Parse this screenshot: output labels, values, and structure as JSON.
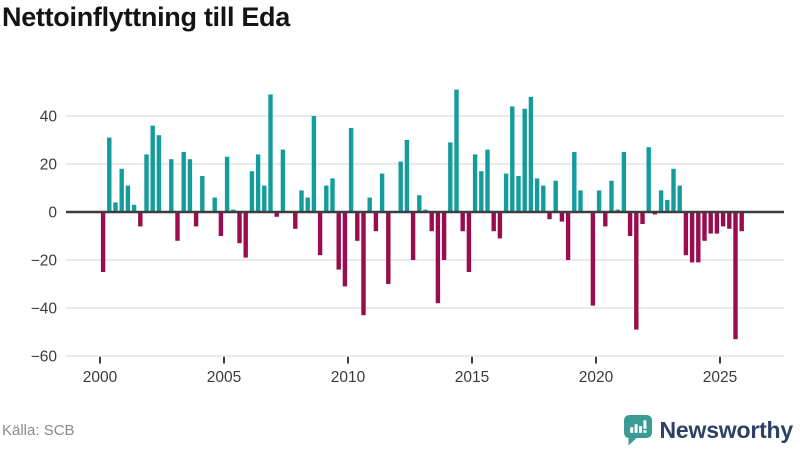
{
  "title": "Nettoinflyttning till Eda",
  "source": "Källa: SCB",
  "branding": {
    "name": "Newsworthy",
    "logo_icon": "bar-chart-speech-bubble",
    "logo_color": "#3c9b94",
    "text_color": "#2c4164"
  },
  "colors": {
    "positive": "#149c9c",
    "negative": "#9a0c4e",
    "grid": "#e4e4e4",
    "zero_line": "#3d3d3d",
    "axis_text": "#3b3b3b",
    "tick_mark": "#3d3d3d",
    "source_text": "#8a8a8a",
    "background": "#ffffff"
  },
  "chart_data": {
    "type": "bar",
    "title": "Nettoinflyttning till Eda",
    "frequency": "quarterly",
    "x_start": "2000 Q1",
    "x_end": "2025 Q4",
    "x_ticks": [
      2000,
      2005,
      2010,
      2015,
      2020,
      2025
    ],
    "x_tick_labels": [
      "2000",
      "2005",
      "2010",
      "2015",
      "2020",
      "2025"
    ],
    "y_ticks": [
      40,
      20,
      0,
      -20,
      -40,
      -60
    ],
    "y_tick_labels": [
      "40",
      "20",
      "0",
      "−20",
      "−40",
      "−60"
    ],
    "ylim": [
      -60,
      55
    ],
    "grid": "horizontal",
    "legend": "none",
    "values": [
      -25,
      31,
      4,
      18,
      11,
      3,
      -6,
      24,
      36,
      32,
      0,
      22,
      -12,
      25,
      22,
      -6,
      15,
      0,
      6,
      -10,
      23,
      1,
      -13,
      -19,
      17,
      24,
      11,
      49,
      -2,
      26,
      0,
      -7,
      9,
      6,
      40,
      -18,
      11,
      14,
      -24,
      -31,
      35,
      -12,
      -43,
      6,
      -8,
      16,
      -30,
      0,
      21,
      30,
      -20,
      7,
      1,
      -8,
      -38,
      -20,
      29,
      51,
      -8,
      -25,
      24,
      17,
      26,
      -8,
      -11,
      16,
      44,
      15,
      43,
      48,
      14,
      11,
      -3,
      13,
      -4,
      -20,
      25,
      9,
      0,
      -39,
      9,
      -6,
      13,
      1,
      25,
      -10,
      -49,
      -5,
      27,
      -1,
      9,
      5,
      18,
      11,
      -18,
      -21,
      -21,
      -12,
      -9,
      -9,
      -6,
      -7,
      -53,
      -8
    ]
  }
}
